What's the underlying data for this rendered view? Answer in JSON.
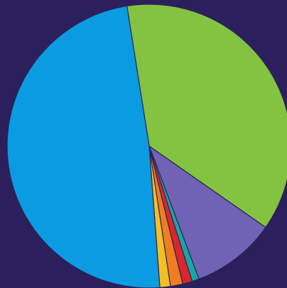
{
  "chart_data": {
    "type": "pie",
    "title": "",
    "background_color": "#2b1f5e",
    "outline_color": "#2a2450",
    "start_angle_deg": -9.0,
    "direction": "clockwise",
    "slices": [
      {
        "value": 37.2,
        "color": "#84c341"
      },
      {
        "value": 9.6,
        "color": "#7062b5"
      },
      {
        "value": 0.8,
        "color": "#16a7a6"
      },
      {
        "value": 1.1,
        "color": "#d9262e"
      },
      {
        "value": 1.4,
        "color": "#f07d22"
      },
      {
        "value": 1.2,
        "color": "#f4bf22"
      },
      {
        "value": 48.7,
        "color": "#0a9be3"
      }
    ]
  }
}
